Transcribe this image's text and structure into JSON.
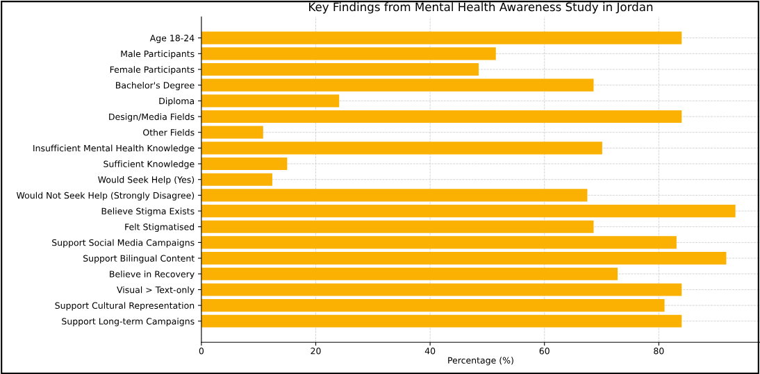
{
  "chart_data": {
    "type": "bar",
    "orientation": "horizontal",
    "title": "Key Findings from Mental Health Awareness Study in Jordan",
    "xlabel": "Percentage (%)",
    "categories": [
      "Age 18-24",
      "Male Participants",
      "Female Participants",
      "Bachelor's Degree",
      "Diploma",
      "Design/Media Fields",
      "Other Fields",
      "Insufficient Mental Health Knowledge",
      "Sufficient Knowledge",
      "Would Seek Help (Yes)",
      "Would Not Seek Help (Strongly Disagree)",
      "Believe Stigma Exists",
      "Felt Stigmatised",
      "Support Social Media Campaigns",
      "Support Bilingual Content",
      "Believe in Recovery",
      "Visual > Text-only",
      "Support Cultural Representation",
      "Support Long-term Campaigns"
    ],
    "values": [
      84,
      51.5,
      48.5,
      68.6,
      24.1,
      84,
      10.8,
      70.1,
      15,
      12.4,
      67.5,
      93.4,
      68.6,
      83.1,
      91.8,
      72.8,
      84,
      81,
      84
    ],
    "color": "#fbb102",
    "xlim": [
      0,
      97.7
    ],
    "xticks": [
      0,
      20,
      40,
      60,
      80
    ],
    "grid": true
  }
}
